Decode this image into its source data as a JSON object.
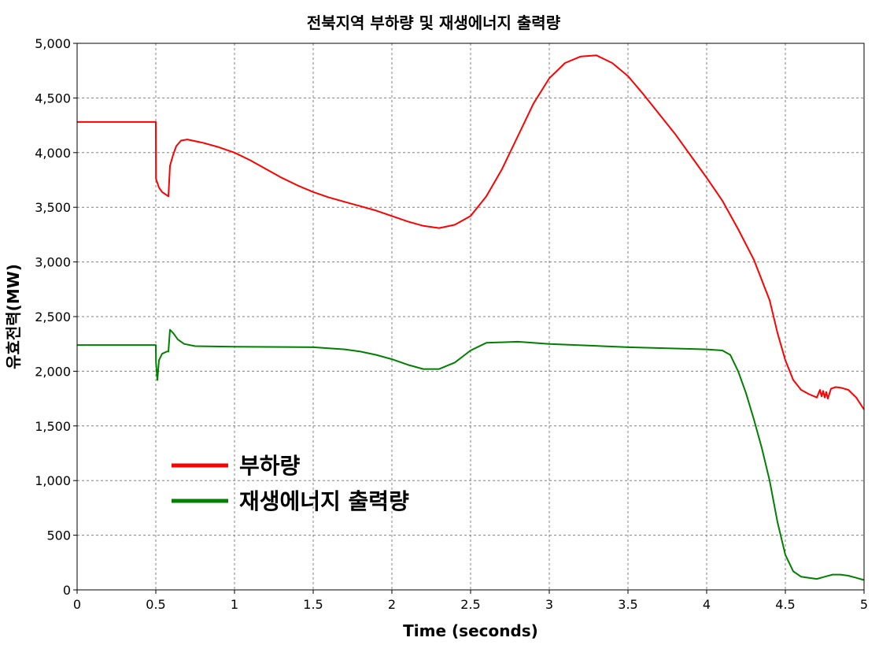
{
  "chart_data": {
    "type": "line",
    "title": "전북지역 부하량 및 재생에너지 출력량",
    "xlabel": "Time (seconds)",
    "ylabel": "유효전력(MW)",
    "xlim": [
      0,
      5
    ],
    "ylim": [
      0,
      5000
    ],
    "x_ticks": [
      "0",
      "0.5",
      "1",
      "1.5",
      "2",
      "2.5",
      "3",
      "3.5",
      "4",
      "4.5",
      "5"
    ],
    "y_ticks": [
      "0",
      "500",
      "1,000",
      "1,500",
      "2,000",
      "2,500",
      "3,000",
      "3,500",
      "4,000",
      "4,500",
      "5,000"
    ],
    "grid": true,
    "legend_position": "lower-left",
    "series": [
      {
        "name": "부하량",
        "color": "#ff0000",
        "points": [
          [
            0,
            4280
          ],
          [
            0.5,
            4280
          ],
          [
            0.501,
            3760
          ],
          [
            0.52,
            3680
          ],
          [
            0.54,
            3640
          ],
          [
            0.58,
            3600
          ],
          [
            0.59,
            3880
          ],
          [
            0.61,
            3980
          ],
          [
            0.63,
            4060
          ],
          [
            0.66,
            4110
          ],
          [
            0.7,
            4120
          ],
          [
            0.8,
            4090
          ],
          [
            0.9,
            4050
          ],
          [
            1.0,
            4000
          ],
          [
            1.1,
            3930
          ],
          [
            1.2,
            3850
          ],
          [
            1.3,
            3770
          ],
          [
            1.4,
            3700
          ],
          [
            1.5,
            3640
          ],
          [
            1.6,
            3590
          ],
          [
            1.7,
            3550
          ],
          [
            1.8,
            3510
          ],
          [
            1.9,
            3470
          ],
          [
            2.0,
            3420
          ],
          [
            2.1,
            3370
          ],
          [
            2.2,
            3330
          ],
          [
            2.3,
            3310
          ],
          [
            2.4,
            3340
          ],
          [
            2.5,
            3420
          ],
          [
            2.6,
            3600
          ],
          [
            2.7,
            3850
          ],
          [
            2.8,
            4150
          ],
          [
            2.9,
            4450
          ],
          [
            3.0,
            4680
          ],
          [
            3.1,
            4820
          ],
          [
            3.2,
            4880
          ],
          [
            3.3,
            4890
          ],
          [
            3.4,
            4820
          ],
          [
            3.5,
            4700
          ],
          [
            3.6,
            4530
          ],
          [
            3.7,
            4350
          ],
          [
            3.8,
            4170
          ],
          [
            3.9,
            3970
          ],
          [
            4.0,
            3770
          ],
          [
            4.1,
            3560
          ],
          [
            4.2,
            3300
          ],
          [
            4.3,
            3020
          ],
          [
            4.4,
            2650
          ],
          [
            4.45,
            2350
          ],
          [
            4.5,
            2100
          ],
          [
            4.55,
            1920
          ],
          [
            4.6,
            1830
          ],
          [
            4.65,
            1790
          ],
          [
            4.7,
            1760
          ],
          [
            4.72,
            1830
          ],
          [
            4.73,
            1770
          ],
          [
            4.74,
            1820
          ],
          [
            4.75,
            1760
          ],
          [
            4.76,
            1810
          ],
          [
            4.77,
            1750
          ],
          [
            4.79,
            1840
          ],
          [
            4.82,
            1855
          ],
          [
            4.85,
            1850
          ],
          [
            4.9,
            1830
          ],
          [
            4.95,
            1760
          ],
          [
            5.0,
            1650
          ]
        ]
      },
      {
        "name": "재생에너지 출력량",
        "color": "#008000",
        "points": [
          [
            0,
            2240
          ],
          [
            0.5,
            2240
          ],
          [
            0.501,
            2080
          ],
          [
            0.51,
            1920
          ],
          [
            0.52,
            2100
          ],
          [
            0.54,
            2160
          ],
          [
            0.57,
            2180
          ],
          [
            0.58,
            2180
          ],
          [
            0.59,
            2380
          ],
          [
            0.61,
            2350
          ],
          [
            0.64,
            2290
          ],
          [
            0.68,
            2250
          ],
          [
            0.75,
            2230
          ],
          [
            1.0,
            2225
          ],
          [
            1.5,
            2220
          ],
          [
            1.7,
            2200
          ],
          [
            1.8,
            2180
          ],
          [
            1.9,
            2150
          ],
          [
            2.0,
            2110
          ],
          [
            2.1,
            2060
          ],
          [
            2.2,
            2020
          ],
          [
            2.3,
            2020
          ],
          [
            2.4,
            2080
          ],
          [
            2.5,
            2190
          ],
          [
            2.6,
            2260
          ],
          [
            2.8,
            2270
          ],
          [
            3.0,
            2250
          ],
          [
            3.5,
            2220
          ],
          [
            4.0,
            2200
          ],
          [
            4.1,
            2190
          ],
          [
            4.15,
            2150
          ],
          [
            4.2,
            2000
          ],
          [
            4.25,
            1800
          ],
          [
            4.3,
            1560
          ],
          [
            4.35,
            1300
          ],
          [
            4.4,
            1000
          ],
          [
            4.45,
            620
          ],
          [
            4.5,
            320
          ],
          [
            4.55,
            170
          ],
          [
            4.6,
            120
          ],
          [
            4.65,
            110
          ],
          [
            4.7,
            100
          ],
          [
            4.75,
            120
          ],
          [
            4.8,
            140
          ],
          [
            4.85,
            140
          ],
          [
            4.9,
            130
          ],
          [
            4.95,
            110
          ],
          [
            5.0,
            90
          ]
        ]
      }
    ]
  }
}
